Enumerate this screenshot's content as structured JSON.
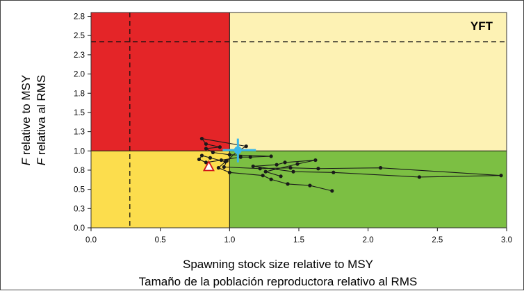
{
  "chart_data": {
    "type": "scatter",
    "plot_label": "YFT",
    "xlabel": [
      "Spawning stock size relative to MSY",
      "Tamaño de la población reproductora relativo al RMS"
    ],
    "ylabel": [
      {
        "italic": "F",
        "rest": " relative to MSY"
      },
      {
        "italic": "F",
        "rest": " relativa al RMS"
      }
    ],
    "xlim": [
      0,
      3.0
    ],
    "ylim": [
      0,
      2.8
    ],
    "xticks": [
      "0.0",
      "0.5",
      "1.0",
      "1.5",
      "2.0",
      "2.5",
      "3.0"
    ],
    "yticks": [
      "0.0",
      "0.3",
      "0.5",
      "0.8",
      "1.0",
      "1.3",
      "1.5",
      "1.8",
      "2.0",
      "2.3",
      "2.5",
      "2.8"
    ],
    "ytick_values": [
      0.0,
      0.25,
      0.5,
      0.75,
      1.0,
      1.25,
      1.5,
      1.75,
      2.0,
      2.25,
      2.5,
      2.75
    ],
    "reference": {
      "x": 1.0,
      "y": 1.0
    },
    "limit_lines": {
      "x": 0.28,
      "y": 2.42
    },
    "quadrant_colors": {
      "top_left": "#e42528",
      "top_right": "#fdf2b4",
      "bottom_left": "#fcdd4d",
      "bottom_right": "#7cbf43"
    },
    "trajectory": {
      "color": "#1a1a1a",
      "points": [
        [
          1.74,
          0.48
        ],
        [
          1.58,
          0.55
        ],
        [
          1.42,
          0.57
        ],
        [
          1.3,
          0.63
        ],
        [
          1.24,
          0.68
        ],
        [
          1.0,
          0.72
        ],
        [
          0.92,
          0.78
        ],
        [
          0.97,
          0.86
        ],
        [
          0.86,
          0.91
        ],
        [
          0.8,
          0.94
        ],
        [
          0.78,
          0.89
        ],
        [
          0.83,
          0.85
        ],
        [
          0.94,
          0.88
        ],
        [
          1.08,
          0.92
        ],
        [
          1.15,
          0.92
        ],
        [
          1.3,
          0.93
        ],
        [
          1.0,
          0.95
        ],
        [
          0.88,
          0.98
        ],
        [
          0.83,
          1.03
        ],
        [
          0.93,
          1.05
        ],
        [
          0.83,
          1.09
        ],
        [
          0.8,
          1.16
        ],
        [
          1.12,
          1.06
        ],
        [
          1.06,
          1.0
        ],
        [
          0.98,
          0.87
        ],
        [
          0.96,
          0.79
        ],
        [
          1.22,
          0.77
        ],
        [
          1.44,
          0.78
        ],
        [
          1.64,
          0.77
        ],
        [
          2.09,
          0.78
        ],
        [
          2.96,
          0.68
        ],
        [
          2.37,
          0.66
        ],
        [
          1.75,
          0.72
        ],
        [
          1.46,
          0.73
        ],
        [
          1.17,
          0.8
        ],
        [
          1.34,
          0.82
        ],
        [
          1.4,
          0.85
        ],
        [
          1.62,
          0.88
        ],
        [
          1.49,
          0.83
        ],
        [
          1.26,
          0.73
        ],
        [
          1.37,
          0.67
        ]
      ]
    },
    "current": {
      "x": 1.06,
      "y": 1.01,
      "xerr": [
        0.95,
        1.19
      ],
      "yerr": [
        0.85,
        1.16
      ],
      "color": "#3bb6e8"
    },
    "start_marker": {
      "x": 0.85,
      "y": 0.79,
      "fill": "#ffffff",
      "stroke": "#d0161b"
    }
  }
}
